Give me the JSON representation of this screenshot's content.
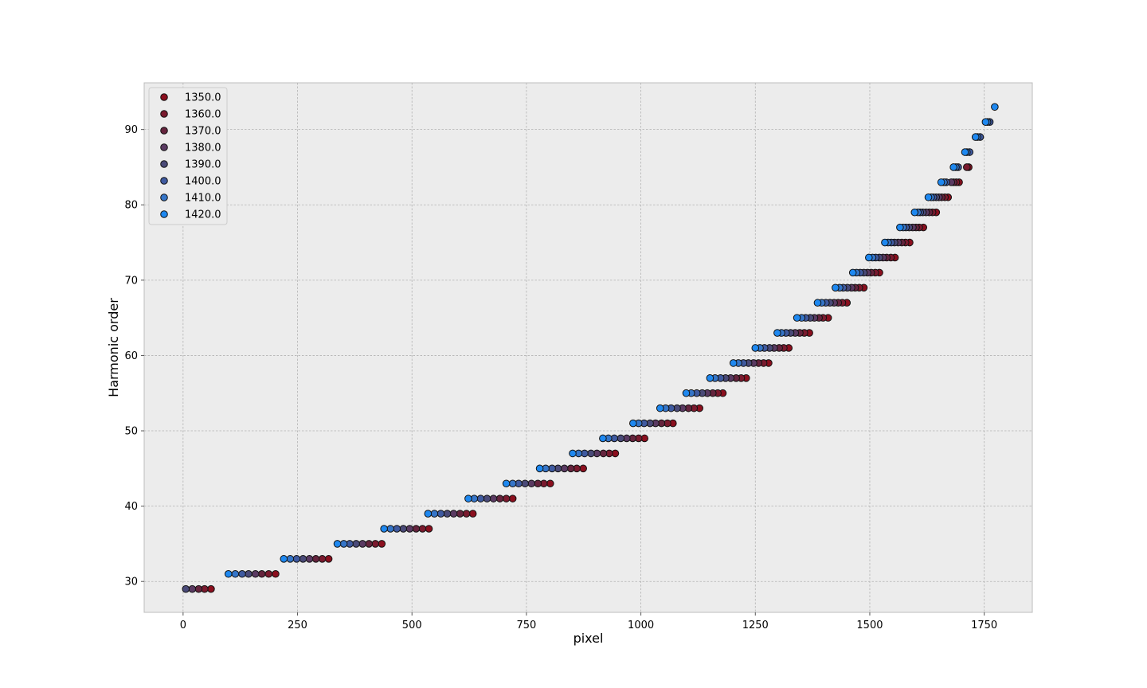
{
  "chart_data": {
    "type": "scatter",
    "xlabel": "pixel",
    "ylabel": "Harmonic order",
    "xlim": [
      -85,
      1855
    ],
    "ylim": [
      25.9,
      96.2
    ],
    "xticks": [
      0,
      250,
      500,
      750,
      1000,
      1250,
      1500,
      1750
    ],
    "yticks": [
      30,
      40,
      50,
      60,
      70,
      80,
      90
    ],
    "grid": true,
    "legend_position": "top-left",
    "series": [
      {
        "name": "1350.0",
        "color": "#8b0f1e",
        "x": [
          61,
          202,
          318,
          434,
          537,
          633,
          720,
          802,
          874,
          944,
          1008,
          1070,
          1128,
          1179,
          1230,
          1279,
          1323,
          1368,
          1409,
          1450,
          1487,
          1521,
          1555,
          1587,
          1617,
          1645,
          1671,
          1695,
          1716
        ],
        "y": [
          29,
          31,
          33,
          35,
          37,
          39,
          41,
          43,
          45,
          47,
          49,
          51,
          53,
          55,
          57,
          59,
          61,
          63,
          65,
          67,
          69,
          71,
          73,
          75,
          77,
          79,
          81,
          83,
          85
        ]
      },
      {
        "name": "1360.0",
        "color": "#7a1a2e",
        "x": [
          47,
          187,
          304,
          420,
          523,
          619,
          706,
          788,
          860,
          931,
          995,
          1058,
          1116,
          1168,
          1219,
          1268,
          1312,
          1357,
          1398,
          1440,
          1477,
          1512,
          1546,
          1578,
          1608,
          1637,
          1664,
          1689,
          1712
        ],
        "y": [
          29,
          31,
          33,
          35,
          37,
          39,
          41,
          43,
          45,
          47,
          49,
          51,
          53,
          55,
          57,
          59,
          61,
          63,
          65,
          67,
          69,
          71,
          73,
          75,
          77,
          79,
          81,
          83,
          85
        ]
      },
      {
        "name": "1370.0",
        "color": "#65243d",
        "x": [
          34,
          172,
          290,
          406,
          509,
          605,
          692,
          775,
          847,
          918,
          982,
          1045,
          1104,
          1157,
          1208,
          1257,
          1302,
          1347,
          1389,
          1431,
          1468,
          1503,
          1537,
          1570,
          1601,
          1630,
          1657,
          1683
        ],
        "y": [
          29,
          31,
          33,
          35,
          37,
          39,
          41,
          43,
          45,
          47,
          49,
          51,
          53,
          55,
          57,
          59,
          61,
          63,
          65,
          67,
          69,
          71,
          73,
          75,
          77,
          79,
          81,
          83
        ]
      },
      {
        "name": "1380.0",
        "color": "#5a3a62",
        "x": [
          20,
          158,
          276,
          392,
          495,
          591,
          678,
          761,
          833,
          904,
          969,
          1032,
          1091,
          1145,
          1196,
          1246,
          1291,
          1337,
          1379,
          1422,
          1460,
          1495,
          1529,
          1562,
          1594,
          1623,
          1651,
          1678
        ],
        "y": [
          29,
          31,
          33,
          35,
          37,
          39,
          41,
          43,
          45,
          47,
          49,
          51,
          53,
          55,
          57,
          59,
          61,
          63,
          65,
          67,
          69,
          71,
          73,
          75,
          77,
          79,
          81,
          83
        ]
      },
      {
        "name": "1390.0",
        "color": "#4a4a78",
        "x": [
          6,
          143,
          262,
          378,
          481,
          577,
          664,
          747,
          819,
          891,
          956,
          1020,
          1079,
          1134,
          1185,
          1235,
          1281,
          1327,
          1370,
          1413,
          1451,
          1487,
          1521,
          1554,
          1586,
          1616,
          1645
        ],
        "y": [
          29,
          31,
          33,
          35,
          37,
          39,
          41,
          43,
          45,
          47,
          49,
          51,
          53,
          55,
          57,
          59,
          61,
          63,
          65,
          67,
          69,
          71,
          73,
          75,
          77,
          79,
          81
        ]
      },
      {
        "name": "1400.0",
        "color": "#3f5aa0",
        "x": [
          129,
          248,
          364,
          467,
          563,
          650,
          733,
          806,
          877,
          942,
          1007,
          1066,
          1122,
          1174,
          1224,
          1270,
          1317,
          1360,
          1404,
          1442,
          1479,
          1513,
          1547,
          1579,
          1610,
          1639,
          1667,
          1693,
          1718,
          1741,
          1762
        ],
        "y": [
          31,
          33,
          35,
          37,
          39,
          41,
          43,
          45,
          47,
          49,
          51,
          53,
          55,
          57,
          59,
          61,
          63,
          65,
          67,
          69,
          71,
          73,
          75,
          77,
          79,
          81,
          83,
          85,
          87,
          89,
          91
        ]
      },
      {
        "name": "1410.0",
        "color": "#3575c8",
        "x": [
          114,
          234,
          351,
          453,
          549,
          636,
          720,
          792,
          864,
          929,
          995,
          1054,
          1110,
          1162,
          1213,
          1260,
          1307,
          1351,
          1395,
          1434,
          1471,
          1506,
          1540,
          1573,
          1605,
          1634,
          1662,
          1688,
          1712,
          1735,
          1757
        ],
        "y": [
          31,
          33,
          35,
          37,
          39,
          41,
          43,
          45,
          47,
          49,
          51,
          53,
          55,
          57,
          59,
          61,
          63,
          65,
          67,
          69,
          71,
          73,
          75,
          77,
          79,
          81,
          83,
          85,
          87,
          89,
          91
        ]
      },
      {
        "name": "1420.0",
        "color": "#1e88f0",
        "x": [
          99,
          220,
          337,
          439,
          535,
          623,
          706,
          779,
          851,
          917,
          983,
          1042,
          1099,
          1151,
          1202,
          1250,
          1298,
          1341,
          1386,
          1425,
          1463,
          1498,
          1533,
          1566,
          1598,
          1628,
          1656,
          1683,
          1708,
          1731,
          1753,
          1773
        ],
        "y": [
          31,
          33,
          35,
          37,
          39,
          41,
          43,
          45,
          47,
          49,
          51,
          53,
          55,
          57,
          59,
          61,
          63,
          65,
          67,
          69,
          71,
          73,
          75,
          77,
          79,
          81,
          83,
          85,
          87,
          89,
          91,
          93
        ]
      }
    ]
  }
}
